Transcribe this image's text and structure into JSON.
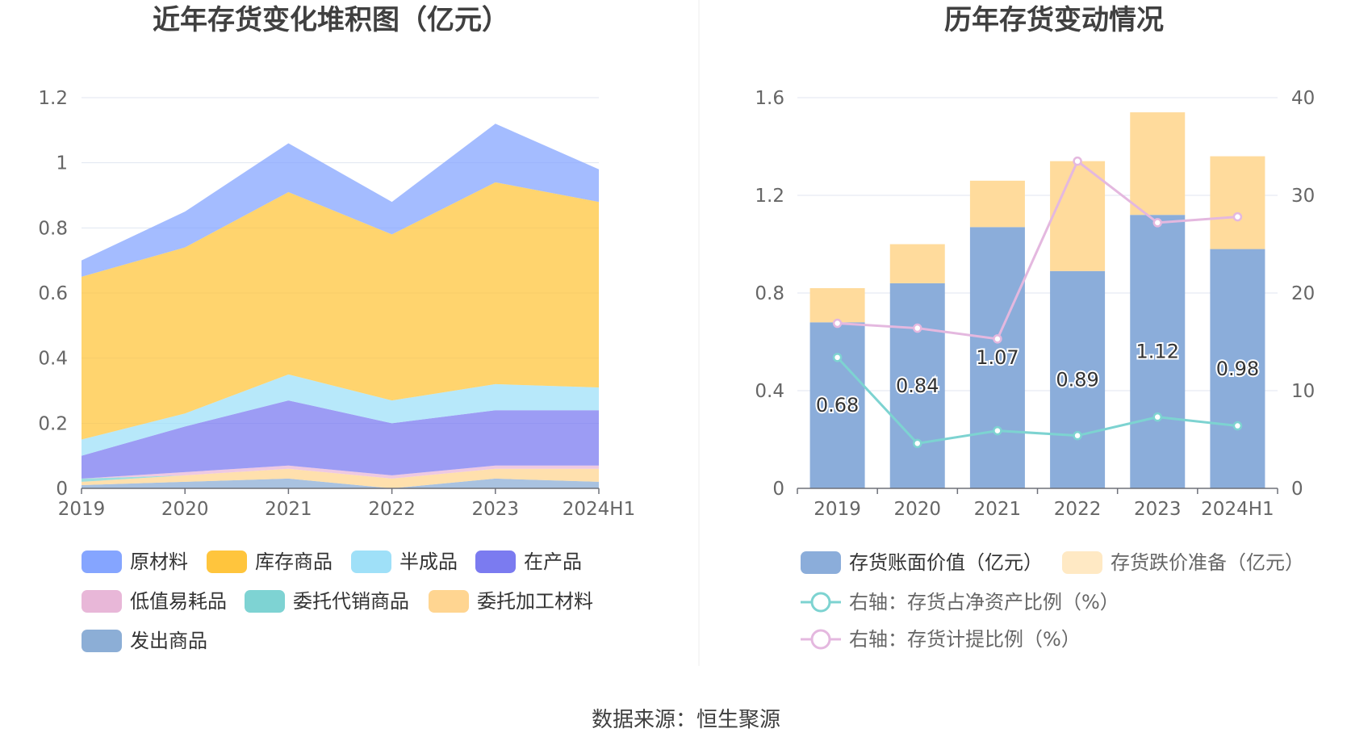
{
  "source_text": "数据来源：恒生聚源",
  "chart_data": [
    {
      "type": "area",
      "stacked": true,
      "title": "近年存货变化堆积图（亿元）",
      "categories": [
        "2019",
        "2020",
        "2021",
        "2022",
        "2023",
        "2024H1"
      ],
      "ylim": [
        0,
        1.2
      ],
      "yticks": [
        "0",
        "0.2",
        "0.4",
        "0.6",
        "0.8",
        "1",
        "1.2"
      ],
      "grid": true,
      "legend_position": "bottom",
      "series": [
        {
          "name": "发出商品",
          "color": "#8caed6",
          "values": [
            0.01,
            0.02,
            0.03,
            0.0,
            0.03,
            0.02
          ]
        },
        {
          "name": "委托加工材料",
          "color": "#ffd591",
          "values": [
            0.01,
            0.02,
            0.03,
            0.03,
            0.03,
            0.04
          ]
        },
        {
          "name": "委托代销商品",
          "color": "#7ed3d3",
          "values": [
            0.01,
            0.0,
            0.0,
            0.0,
            0.0,
            0.0
          ]
        },
        {
          "name": "低值易耗品",
          "color": "#e8b7d8",
          "values": [
            0.0,
            0.01,
            0.01,
            0.01,
            0.01,
            0.01
          ]
        },
        {
          "name": "在产品",
          "color": "#7b7bf0",
          "values": [
            0.07,
            0.14,
            0.2,
            0.16,
            0.17,
            0.17
          ]
        },
        {
          "name": "半成品",
          "color": "#9fe0f8",
          "values": [
            0.05,
            0.04,
            0.08,
            0.07,
            0.08,
            0.07
          ]
        },
        {
          "name": "库存商品",
          "color": "#ffc53d",
          "values": [
            0.5,
            0.51,
            0.56,
            0.51,
            0.62,
            0.57
          ]
        },
        {
          "name": "原材料",
          "color": "#85a5ff",
          "values": [
            0.05,
            0.11,
            0.15,
            0.1,
            0.18,
            0.1
          ]
        }
      ],
      "legend_order": [
        "原材料",
        "库存商品",
        "半成品",
        "在产品",
        "低值易耗品",
        "委托代销商品",
        "委托加工材料",
        "发出商品"
      ]
    },
    {
      "type": "bar",
      "stacked": true,
      "title": "历年存货变动情况",
      "categories": [
        "2019",
        "2020",
        "2021",
        "2022",
        "2023",
        "2024H1"
      ],
      "ylim": [
        0,
        1.6
      ],
      "yticks": [
        "0",
        "0.4",
        "0.8",
        "1.2",
        "1.6"
      ],
      "y2lim": [
        0,
        40
      ],
      "y2ticks": [
        "0",
        "10",
        "20",
        "30",
        "40"
      ],
      "grid": true,
      "legend_position": "bottom",
      "series": [
        {
          "name": "存货账面价值（亿元）",
          "type": "bar",
          "color": "#8badda",
          "values": [
            0.68,
            0.84,
            1.07,
            0.89,
            1.12,
            0.98
          ],
          "labels": [
            "0.68",
            "0.84",
            "1.07",
            "0.89",
            "1.12",
            "0.98"
          ]
        },
        {
          "name": "存货跌价准备（亿元）",
          "type": "bar",
          "color": "#ffdb9c",
          "values": [
            0.14,
            0.16,
            0.19,
            0.45,
            0.42,
            0.38
          ]
        },
        {
          "name": "右轴：存货占净资产比例（%）",
          "type": "line",
          "axis": "right",
          "color": "#7dd3d1",
          "values": [
            13.4,
            4.6,
            5.9,
            5.4,
            7.3,
            6.4
          ]
        },
        {
          "name": "右轴：存货计提比例（%）",
          "type": "line",
          "axis": "right",
          "color": "#e4b8df",
          "values": [
            16.9,
            16.4,
            15.3,
            33.5,
            27.2,
            27.8
          ]
        }
      ]
    }
  ]
}
